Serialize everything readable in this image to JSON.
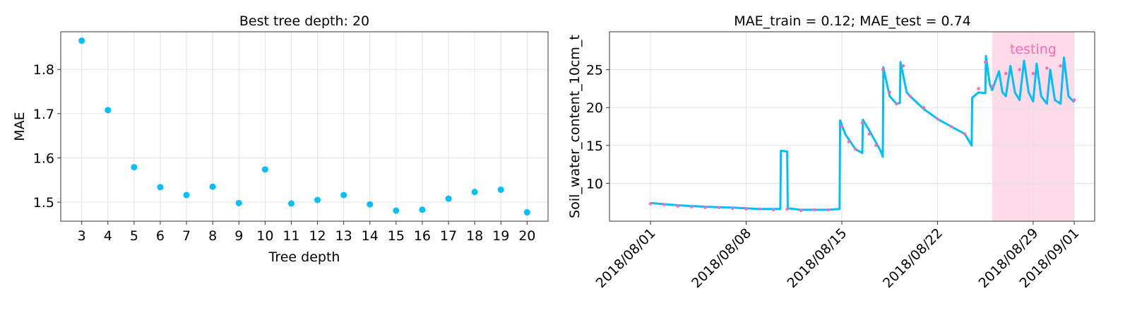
{
  "colors": {
    "blue": "#00bfff",
    "pink": "#ff69b4",
    "testing_shade": "#ffdbe9",
    "grid": "#e3e3e3"
  },
  "chart_data": [
    {
      "type": "scatter",
      "title": "Best tree depth: 20",
      "xlabel": "Tree depth",
      "ylabel": "MAE",
      "x": [
        3,
        4,
        5,
        6,
        7,
        8,
        9,
        10,
        11,
        12,
        13,
        14,
        15,
        16,
        17,
        18,
        19,
        20
      ],
      "y": [
        1.865,
        1.708,
        1.579,
        1.534,
        1.516,
        1.535,
        1.498,
        1.574,
        1.497,
        1.505,
        1.516,
        1.495,
        1.481,
        1.483,
        1.508,
        1.523,
        1.528,
        1.477
      ],
      "xlim": [
        2.2,
        20.8
      ],
      "ylim": [
        1.457,
        1.885
      ],
      "xticks": [
        "3",
        "4",
        "5",
        "6",
        "7",
        "8",
        "9",
        "10",
        "11",
        "12",
        "13",
        "14",
        "15",
        "16",
        "17",
        "18",
        "19",
        "20"
      ],
      "yticks": [
        1.5,
        1.6,
        1.7,
        1.8
      ],
      "ytick_labels": [
        "1.5",
        "1.6",
        "1.7",
        "1.8"
      ],
      "grid": true,
      "color": "#00bfff"
    },
    {
      "type": "line",
      "title": "MAE_train = 0.12; MAE_test = 0.74",
      "xlabel": "",
      "ylabel": "Soil_water_content_10cm_t",
      "xlim": [
        "2018-07-29",
        "2018-09-02T12:00"
      ],
      "ylim": [
        5,
        30
      ],
      "xticks": [
        "2018/08/01",
        "2018/08/08",
        "2018/08/15",
        "2018/08/22",
        "2018/08/29",
        "2018/09/01"
      ],
      "yticks": [
        10,
        15,
        20,
        25
      ],
      "ytick_labels": [
        "10",
        "15",
        "20",
        "25"
      ],
      "grid": true,
      "testing_region": {
        "label": "testing",
        "start": "2018-08-26",
        "end": "2018-09-01"
      },
      "series": [
        {
          "color": "#00bfff",
          "style": "line",
          "points": [
            [
              "2018-08-01",
              7.4
            ],
            [
              "2018-08-03",
              7.1
            ],
            [
              "2018-08-05",
              6.9
            ],
            [
              "2018-08-07",
              6.8
            ],
            [
              "2018-08-09",
              6.6
            ],
            [
              "2018-08-10T12:00",
              6.6
            ],
            [
              "2018-08-10T13:00",
              14.3
            ],
            [
              "2018-08-11",
              14.2
            ],
            [
              "2018-08-11T01:00",
              6.7
            ],
            [
              "2018-08-12",
              6.5
            ],
            [
              "2018-08-14",
              6.5
            ],
            [
              "2018-08-14T20:00",
              6.6
            ],
            [
              "2018-08-14T21:00",
              18.3
            ],
            [
              "2018-08-15T06:00",
              16.5
            ],
            [
              "2018-08-16",
              14.5
            ],
            [
              "2018-08-16T12:00",
              14.0
            ],
            [
              "2018-08-16T13:00",
              18.4
            ],
            [
              "2018-08-17",
              17.0
            ],
            [
              "2018-08-17T20:00",
              14.3
            ],
            [
              "2018-08-18",
              13.5
            ],
            [
              "2018-08-18T01:00",
              25.3
            ],
            [
              "2018-08-18T12:00",
              21.5
            ],
            [
              "2018-08-19",
              20.5
            ],
            [
              "2018-08-19T06:00",
              20.6
            ],
            [
              "2018-08-19T07:00",
              26.0
            ],
            [
              "2018-08-19T18:00",
              22.0
            ],
            [
              "2018-08-20",
              21.5
            ],
            [
              "2018-08-21",
              19.8
            ],
            [
              "2018-08-22",
              18.5
            ],
            [
              "2018-08-23",
              17.5
            ],
            [
              "2018-08-24",
              16.5
            ],
            [
              "2018-08-24T12:00",
              15.0
            ],
            [
              "2018-08-24T13:00",
              21.3
            ],
            [
              "2018-08-25",
              22.0
            ],
            [
              "2018-08-25T12:00",
              21.9
            ],
            [
              "2018-08-25T13:00",
              26.8
            ],
            [
              "2018-08-25T20:00",
              23.0
            ],
            [
              "2018-08-26",
              22.3
            ],
            [
              "2018-08-26T12:00",
              24.8
            ],
            [
              "2018-08-26T18:00",
              22.0
            ],
            [
              "2018-08-27",
              21.5
            ],
            [
              "2018-08-27T08:00",
              25.5
            ],
            [
              "2018-08-27T16:00",
              22.0
            ],
            [
              "2018-08-28",
              21.0
            ],
            [
              "2018-08-28T08:00",
              26.2
            ],
            [
              "2018-08-28T16:00",
              22.0
            ],
            [
              "2018-08-29",
              20.8
            ],
            [
              "2018-08-29T06:00",
              25.8
            ],
            [
              "2018-08-29T14:00",
              21.5
            ],
            [
              "2018-08-30",
              20.5
            ],
            [
              "2018-08-30T06:00",
              25.0
            ],
            [
              "2018-08-30T14:00",
              21.0
            ],
            [
              "2018-08-31",
              20.5
            ],
            [
              "2018-08-31T06:00",
              26.6
            ],
            [
              "2018-08-31T14:00",
              21.5
            ],
            [
              "2018-09-01",
              20.7
            ]
          ]
        },
        {
          "color": "#ff69b4",
          "style": "points",
          "points": [
            [
              "2018-08-01",
              7.3
            ],
            [
              "2018-08-02",
              7.2
            ],
            [
              "2018-08-03",
              7.0
            ],
            [
              "2018-08-04",
              6.9
            ],
            [
              "2018-08-05",
              6.8
            ],
            [
              "2018-08-06",
              6.8
            ],
            [
              "2018-08-07",
              6.7
            ],
            [
              "2018-08-08",
              6.6
            ],
            [
              "2018-08-09",
              6.6
            ],
            [
              "2018-08-10",
              6.5
            ],
            [
              "2018-08-11",
              6.6
            ],
            [
              "2018-08-12",
              6.4
            ],
            [
              "2018-08-13",
              6.5
            ],
            [
              "2018-08-14",
              6.5
            ],
            [
              "2018-08-15",
              17.5
            ],
            [
              "2018-08-15T12:00",
              15.5
            ],
            [
              "2018-08-16",
              14.5
            ],
            [
              "2018-08-16T12:00",
              18.0
            ],
            [
              "2018-08-17",
              16.5
            ],
            [
              "2018-08-17T12:00",
              15.0
            ],
            [
              "2018-08-18",
              25.0
            ],
            [
              "2018-08-18T12:00",
              22.0
            ],
            [
              "2018-08-19",
              20.5
            ],
            [
              "2018-08-19T12:00",
              25.5
            ],
            [
              "2018-08-20",
              21.5
            ],
            [
              "2018-08-21",
              20.0
            ],
            [
              "2018-08-22",
              18.5
            ],
            [
              "2018-08-23",
              17.5
            ],
            [
              "2018-08-24",
              16.5
            ],
            [
              "2018-08-25",
              22.5
            ],
            [
              "2018-08-25T12:00",
              26.0
            ],
            [
              "2018-08-26",
              22.8
            ],
            [
              "2018-08-27",
              24.5
            ],
            [
              "2018-08-28",
              25.0
            ],
            [
              "2018-08-29",
              24.5
            ],
            [
              "2018-08-30",
              25.2
            ],
            [
              "2018-08-31",
              25.5
            ],
            [
              "2018-09-01",
              21.0
            ]
          ]
        }
      ]
    }
  ]
}
